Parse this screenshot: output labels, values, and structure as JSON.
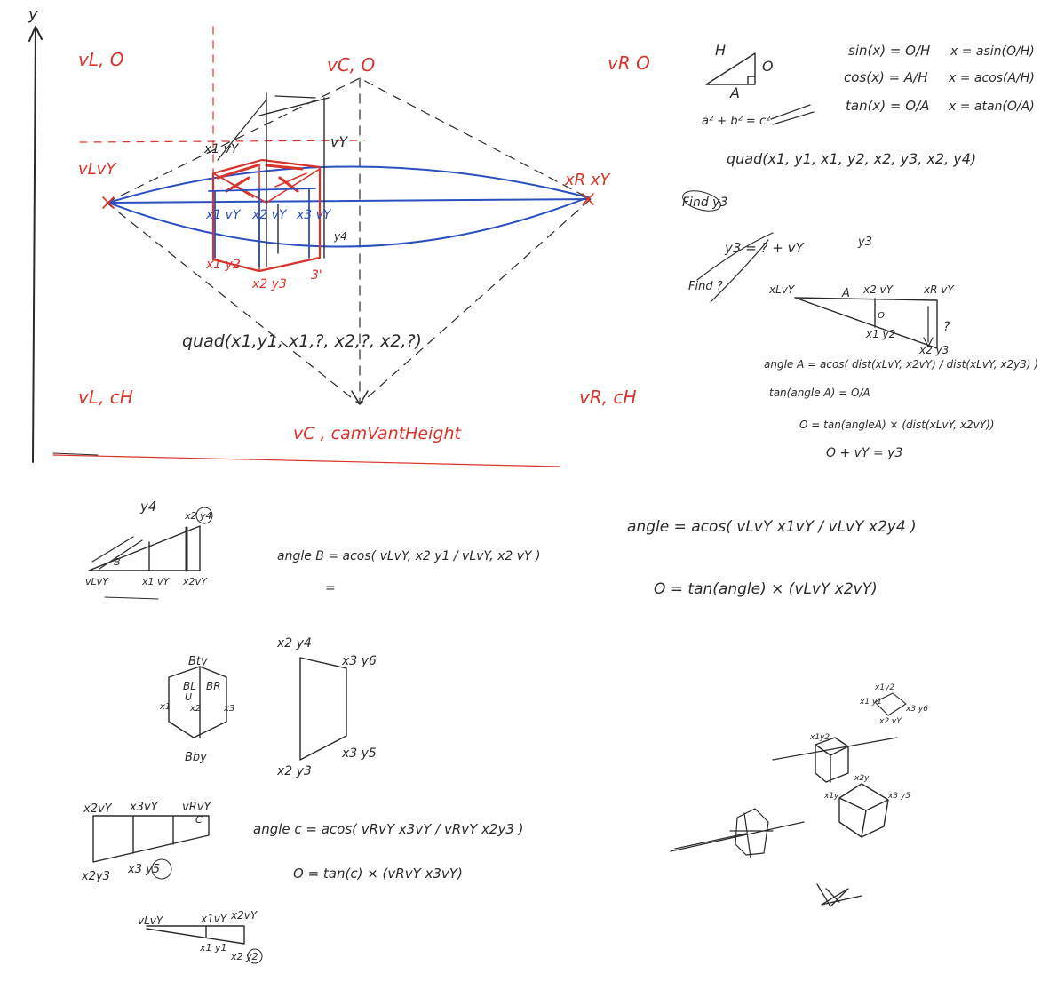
{
  "perspective": {
    "corner_vL0": "vL, O",
    "corner_vC0": "vC, O",
    "corner_vR0": "vR O",
    "corner_vLcH": "vL, cH",
    "corner_vRcH": "vR, cH",
    "bottom_center": "vC , camVantHeight",
    "left_eye": "vLvY",
    "right_eye": "xR xY",
    "x1y2": "x1 y2",
    "x2y3": "x2 y3",
    "x3y": "3'",
    "x1vY": "x1 vY",
    "x2vY": "x2 vY",
    "x3vY": "x3 vY",
    "vY": "vY",
    "y4": "y4",
    "quad": "quad(x1,y1, x1,?, x2,?, x2,?)",
    "axis_y": "y"
  },
  "trig": {
    "triangle_H": "H",
    "triangle_A": "A",
    "triangle_O": "O",
    "sin": "sin(x) = O/H",
    "cos": "cos(x) = A/H",
    "tan": "tan(x) = O/A",
    "asin": "x = asin(O/H)",
    "acos": "x = acos(A/H)",
    "atan": "x = atan(O/A)",
    "pythag": "a² + b² = c²",
    "quad": "quad(x1, y1, x1, y2, x2, y3, x2, y4)",
    "find_y3": "Find y3",
    "y3_eq": "y3 = ? + vY",
    "y3_label": "y3",
    "find_q": "Find ?"
  },
  "right_derivation": {
    "left_label": "xLvY",
    "mid_label": "x2 vY",
    "right_label": "xR vY",
    "A": "A",
    "O": "O",
    "q": "?",
    "x1y2": "x1 y2",
    "x2y3": "x2 y3",
    "angle_A": "angle A = acos( dist(xLvY, x2vY) / dist(xLvY, x2y3) )",
    "tan": "tan(angle A) = O/A",
    "O_eq": "O = tan(angleA) × (dist(xLvY, x2vY))",
    "sum": "O + vY = y3"
  },
  "middle_right": {
    "angle": "angle = acos( vLvY x1vY / vLvY x2y4 )",
    "O": "O = tan(angle) × (vLvY x2vY)"
  },
  "sketch_y4": {
    "label_y4": "y4",
    "left": "vLvY",
    "mid": "x1 vY",
    "right": "x2vY",
    "top_right": "x2 y4",
    "B": "B",
    "angle_B": "angle B = acos( vLvY, x2 y1 / vLvY, x2 vY )",
    "equals": "="
  },
  "quad_shape": {
    "tl": "x2 y4",
    "tr": "x3 y6",
    "bl": "x2 y3",
    "br": "x3 y5"
  },
  "hex_shape": {
    "top": "Bty",
    "bottom": "Bby",
    "BL": "BL",
    "BR": "BR",
    "U": "U",
    "x1": "x1",
    "x2": "x2",
    "x3": "x3"
  },
  "sketch_c": {
    "tl": "x2vY",
    "mid": "x3vY",
    "right": "vRvY",
    "bl": "x2y3",
    "br": "x3 y5",
    "C": "C",
    "angle_c": "angle c = acos( vRvY x3vY / vRvY x2y3 )",
    "O": "O = tan(c) × (vRvY x3vY)"
  },
  "sketch_bottom": {
    "left": "vLvY",
    "mid": "x1vY",
    "right": "x2vY",
    "b1": "x1 y1",
    "b2": "x2 y2"
  },
  "small_cubes": {
    "a_top": "x1y2",
    "a_left": "x1 y1",
    "a_mid": "x2 vY",
    "a_right": "x3 y6",
    "b_top": "x1y2",
    "b_left": "x1y1",
    "b_right": "x3 y5",
    "c_top": "x2y",
    "c_left": "x1y"
  }
}
